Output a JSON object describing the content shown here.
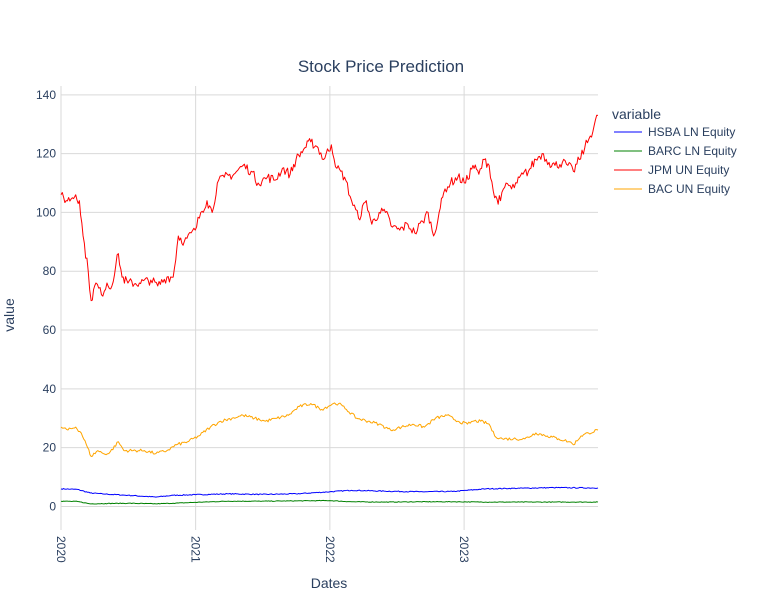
{
  "chart_data": {
    "type": "line",
    "title": "Stock Price Prediction",
    "xlabel": "Dates",
    "ylabel": "value",
    "legend_title": "variable",
    "legend_position": "top-right",
    "grid": true,
    "xlim": [
      "2020-01-01",
      "2023-12-31"
    ],
    "ylim": [
      -8,
      143
    ],
    "x_ticks": [
      {
        "date": "2020-01-01",
        "label": "2020"
      },
      {
        "date": "2021-01-01",
        "label": "2021"
      },
      {
        "date": "2022-01-01",
        "label": "2022"
      },
      {
        "date": "2023-01-01",
        "label": "2023"
      }
    ],
    "y_ticks": [
      0,
      20,
      40,
      60,
      80,
      100,
      120,
      140
    ],
    "series": [
      {
        "name": "HSBA LN Equity",
        "color": "#0000ff",
        "points": [
          [
            "2020-01-01",
            6.0
          ],
          [
            "2020-02-15",
            5.8
          ],
          [
            "2020-03-20",
            4.6
          ],
          [
            "2020-05-01",
            4.2
          ],
          [
            "2020-07-01",
            3.8
          ],
          [
            "2020-09-15",
            3.2
          ],
          [
            "2020-11-01",
            3.8
          ],
          [
            "2021-01-01",
            4.0
          ],
          [
            "2021-04-01",
            4.3
          ],
          [
            "2021-07-01",
            4.1
          ],
          [
            "2021-10-01",
            4.3
          ],
          [
            "2022-01-01",
            5.0
          ],
          [
            "2022-03-01",
            5.5
          ],
          [
            "2022-06-01",
            5.2
          ],
          [
            "2022-09-01",
            5.0
          ],
          [
            "2022-12-01",
            5.1
          ],
          [
            "2023-03-01",
            6.0
          ],
          [
            "2023-06-01",
            6.2
          ],
          [
            "2023-09-01",
            6.4
          ],
          [
            "2023-12-31",
            6.3
          ]
        ]
      },
      {
        "name": "BARC LN Equity",
        "color": "#008000",
        "points": [
          [
            "2020-01-01",
            1.8
          ],
          [
            "2020-02-15",
            1.7
          ],
          [
            "2020-03-20",
            0.9
          ],
          [
            "2020-05-01",
            1.0
          ],
          [
            "2020-07-01",
            1.1
          ],
          [
            "2020-09-15",
            0.9
          ],
          [
            "2020-11-01",
            1.1
          ],
          [
            "2021-01-01",
            1.4
          ],
          [
            "2021-04-01",
            1.8
          ],
          [
            "2021-07-01",
            1.8
          ],
          [
            "2021-10-01",
            1.9
          ],
          [
            "2022-01-01",
            2.0
          ],
          [
            "2022-03-01",
            1.6
          ],
          [
            "2022-06-01",
            1.5
          ],
          [
            "2022-09-01",
            1.6
          ],
          [
            "2022-12-01",
            1.6
          ],
          [
            "2023-03-01",
            1.5
          ],
          [
            "2023-06-01",
            1.5
          ],
          [
            "2023-09-01",
            1.5
          ],
          [
            "2023-12-31",
            1.5
          ]
        ]
      },
      {
        "name": "JPM UN Equity",
        "color": "#ff0000",
        "points": [
          [
            "2020-01-01",
            106
          ],
          [
            "2020-01-15",
            104
          ],
          [
            "2020-02-01",
            105
          ],
          [
            "2020-02-10",
            106
          ],
          [
            "2020-02-20",
            104
          ],
          [
            "2020-03-01",
            92
          ],
          [
            "2020-03-15",
            80
          ],
          [
            "2020-03-23",
            70
          ],
          [
            "2020-04-05",
            76
          ],
          [
            "2020-04-20",
            72
          ],
          [
            "2020-05-05",
            76
          ],
          [
            "2020-05-15",
            74
          ],
          [
            "2020-06-05",
            86
          ],
          [
            "2020-06-15",
            78
          ],
          [
            "2020-07-01",
            76
          ],
          [
            "2020-08-01",
            76
          ],
          [
            "2020-09-01",
            77
          ],
          [
            "2020-09-20",
            75
          ],
          [
            "2020-10-15",
            78
          ],
          [
            "2020-11-01",
            78
          ],
          [
            "2020-11-15",
            92
          ],
          [
            "2020-12-01",
            90
          ],
          [
            "2020-12-31",
            94
          ],
          [
            "2021-01-15",
            100
          ],
          [
            "2021-02-01",
            104
          ],
          [
            "2021-02-15",
            100
          ],
          [
            "2021-03-01",
            110
          ],
          [
            "2021-03-20",
            112
          ],
          [
            "2021-04-15",
            113
          ],
          [
            "2021-05-10",
            116
          ],
          [
            "2021-06-01",
            114
          ],
          [
            "2021-06-20",
            110
          ],
          [
            "2021-07-15",
            112
          ],
          [
            "2021-08-05",
            111
          ],
          [
            "2021-08-25",
            115
          ],
          [
            "2021-09-15",
            113
          ],
          [
            "2021-10-01",
            118
          ],
          [
            "2021-10-25",
            122
          ],
          [
            "2021-11-10",
            124
          ],
          [
            "2021-11-30",
            122
          ],
          [
            "2021-12-15",
            118
          ],
          [
            "2022-01-05",
            123
          ],
          [
            "2022-01-20",
            115
          ],
          [
            "2022-02-10",
            112
          ],
          [
            "2022-03-01",
            104
          ],
          [
            "2022-03-20",
            98
          ],
          [
            "2022-04-10",
            104
          ],
          [
            "2022-04-25",
            96
          ],
          [
            "2022-05-15",
            100
          ],
          [
            "2022-06-01",
            100
          ],
          [
            "2022-06-20",
            95
          ],
          [
            "2022-07-10",
            94
          ],
          [
            "2022-08-01",
            96
          ],
          [
            "2022-08-20",
            93
          ],
          [
            "2022-09-10",
            97
          ],
          [
            "2022-09-25",
            100
          ],
          [
            "2022-10-10",
            92
          ],
          [
            "2022-10-25",
            100
          ],
          [
            "2022-11-10",
            108
          ],
          [
            "2022-11-25",
            110
          ],
          [
            "2022-12-15",
            112
          ],
          [
            "2023-01-05",
            110
          ],
          [
            "2023-01-25",
            116
          ],
          [
            "2023-02-10",
            113
          ],
          [
            "2023-02-25",
            118
          ],
          [
            "2023-03-10",
            116
          ],
          [
            "2023-03-25",
            105
          ],
          [
            "2023-04-10",
            104
          ],
          [
            "2023-04-25",
            110
          ],
          [
            "2023-05-10",
            108
          ],
          [
            "2023-05-25",
            110
          ],
          [
            "2023-06-10",
            113
          ],
          [
            "2023-06-25",
            114
          ],
          [
            "2023-07-15",
            118
          ],
          [
            "2023-08-01",
            120
          ],
          [
            "2023-08-20",
            117
          ],
          [
            "2023-09-05",
            116
          ],
          [
            "2023-09-25",
            117
          ],
          [
            "2023-10-10",
            116
          ],
          [
            "2023-10-25",
            114
          ],
          [
            "2023-11-10",
            118
          ],
          [
            "2023-11-25",
            122
          ],
          [
            "2023-12-10",
            126
          ],
          [
            "2023-12-31",
            133
          ]
        ]
      },
      {
        "name": "BAC UN Equity",
        "color": "#ffa500",
        "points": [
          [
            "2020-01-01",
            27
          ],
          [
            "2020-01-20",
            26
          ],
          [
            "2020-02-10",
            27
          ],
          [
            "2020-02-25",
            25
          ],
          [
            "2020-03-10",
            21
          ],
          [
            "2020-03-23",
            17
          ],
          [
            "2020-04-10",
            19
          ],
          [
            "2020-04-25",
            18
          ],
          [
            "2020-05-10",
            18
          ],
          [
            "2020-06-05",
            22
          ],
          [
            "2020-06-20",
            19
          ],
          [
            "2020-07-15",
            19
          ],
          [
            "2020-08-15",
            19
          ],
          [
            "2020-09-15",
            18
          ],
          [
            "2020-10-15",
            19
          ],
          [
            "2020-11-10",
            21
          ],
          [
            "2020-12-10",
            22
          ],
          [
            "2021-01-10",
            24
          ],
          [
            "2021-02-10",
            27
          ],
          [
            "2021-03-10",
            29
          ],
          [
            "2021-04-10",
            30
          ],
          [
            "2021-05-10",
            31
          ],
          [
            "2021-06-10",
            30
          ],
          [
            "2021-07-10",
            29
          ],
          [
            "2021-08-10",
            30
          ],
          [
            "2021-09-10",
            31
          ],
          [
            "2021-10-10",
            34
          ],
          [
            "2021-11-10",
            35
          ],
          [
            "2021-12-10",
            33
          ],
          [
            "2022-01-10",
            35
          ],
          [
            "2022-01-25",
            35
          ],
          [
            "2022-02-15",
            33
          ],
          [
            "2022-03-15",
            30
          ],
          [
            "2022-04-15",
            29
          ],
          [
            "2022-05-15",
            28
          ],
          [
            "2022-06-15",
            26
          ],
          [
            "2022-07-15",
            27
          ],
          [
            "2022-08-15",
            28
          ],
          [
            "2022-09-15",
            27
          ],
          [
            "2022-10-15",
            30
          ],
          [
            "2022-11-15",
            31
          ],
          [
            "2022-12-15",
            29
          ],
          [
            "2023-01-10",
            28
          ],
          [
            "2023-01-25",
            29
          ],
          [
            "2023-02-15",
            29
          ],
          [
            "2023-03-10",
            28
          ],
          [
            "2023-03-25",
            24
          ],
          [
            "2023-04-15",
            23
          ],
          [
            "2023-05-15",
            23
          ],
          [
            "2023-06-15",
            23
          ],
          [
            "2023-07-15",
            25
          ],
          [
            "2023-08-15",
            24
          ],
          [
            "2023-09-15",
            23
          ],
          [
            "2023-10-15",
            22
          ],
          [
            "2023-10-25",
            21
          ],
          [
            "2023-11-15",
            24
          ],
          [
            "2023-12-05",
            25
          ],
          [
            "2023-12-31",
            26
          ]
        ]
      }
    ]
  }
}
